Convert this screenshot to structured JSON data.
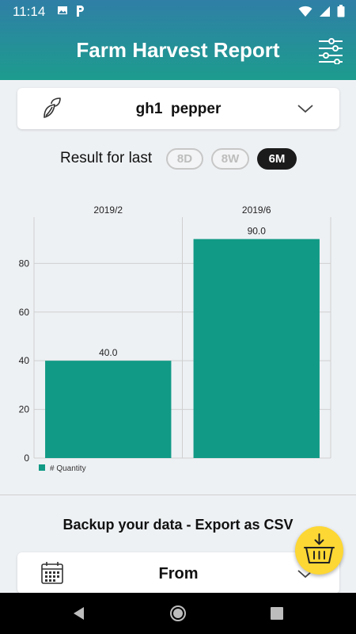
{
  "status_bar": {
    "time": "11:14",
    "left_icons": [
      "image-icon",
      "parking-app-icon"
    ],
    "right_icons": [
      "wifi-icon",
      "signal-icon",
      "battery-icon"
    ]
  },
  "header": {
    "title": "Farm Harvest Report",
    "filter_icon": "sliders-icon"
  },
  "crop_selector": {
    "value": "gh1  pepper",
    "icon": "leaf-icon"
  },
  "range": {
    "label": "Result for last",
    "options": [
      {
        "label": "8D",
        "selected": false
      },
      {
        "label": "8W",
        "selected": false
      },
      {
        "label": "6M",
        "selected": true
      }
    ]
  },
  "chart_data": {
    "type": "bar",
    "categories": [
      "2019/2",
      "2019/6"
    ],
    "series": [
      {
        "name": "# Quantity",
        "values": [
          40.0,
          90.0
        ],
        "color": "#119a86"
      }
    ],
    "data_labels": [
      "40.0",
      "90.0"
    ],
    "yticks": [
      0,
      20,
      40,
      60,
      80
    ],
    "ylim": [
      0,
      99
    ],
    "grid": true,
    "legend": "bottom-left"
  },
  "export": {
    "title": "Backup your data - Export as CSV",
    "basket_icon": "basket-download-icon"
  },
  "from_selector": {
    "label": "From",
    "icon": "calendar-icon"
  },
  "navigation": {
    "back": "back-icon",
    "home": "home-icon",
    "recents": "recents-icon"
  }
}
